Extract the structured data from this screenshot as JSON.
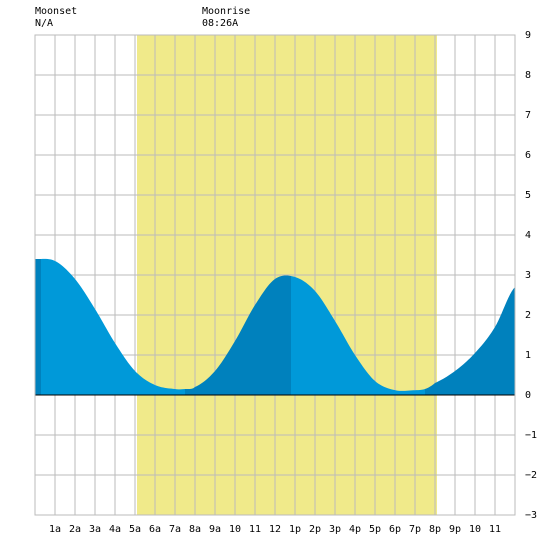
{
  "moonset": {
    "label": "Moonset",
    "value": "N/A"
  },
  "moonrise": {
    "label": "Moonrise",
    "value": "08:26A"
  },
  "colors": {
    "daylight": "#f0ea8a",
    "tide_light": "#0099d9",
    "tide_dark": "#0081bd",
    "grid": "#bbbbbb",
    "zero_line": "#000000"
  },
  "chart_data": {
    "type": "area",
    "title": "",
    "xlabel": "",
    "ylabel": "",
    "x_tick_labels": [
      "1a",
      "2a",
      "3a",
      "4a",
      "5a",
      "6a",
      "7a",
      "8a",
      "9a",
      "10",
      "11",
      "12",
      "1p",
      "2p",
      "3p",
      "4p",
      "5p",
      "6p",
      "7p",
      "8p",
      "9p",
      "10",
      "11"
    ],
    "x_range_hours": [
      0,
      24
    ],
    "ylim": [
      -3,
      9
    ],
    "y_ticks": [
      -3,
      -2,
      -1,
      0,
      1,
      2,
      3,
      4,
      5,
      6,
      7,
      8,
      9
    ],
    "grid": true,
    "daylight_hours": [
      5.1,
      20.1
    ],
    "series": [
      {
        "hours": [
          0,
          1,
          2,
          3,
          4,
          5,
          6,
          7,
          7.5,
          8,
          9,
          10,
          11,
          12,
          13,
          14,
          15,
          16,
          17,
          18,
          19,
          19.5,
          20,
          21,
          22,
          23,
          24
        ],
        "values": [
          3.4,
          3.35,
          2.9,
          2.15,
          1.3,
          0.6,
          0.25,
          0.15,
          0.15,
          0.2,
          0.6,
          1.35,
          2.25,
          2.9,
          2.95,
          2.6,
          1.85,
          1.0,
          0.35,
          0.12,
          0.12,
          0.15,
          0.3,
          0.6,
          1.05,
          1.7,
          2.7
        ]
      }
    ],
    "extrema": [
      {
        "type": "high",
        "hour": 0.3,
        "value": 3.5
      },
      {
        "type": "low",
        "hour": 7.5,
        "value": 0.15
      },
      {
        "type": "high",
        "hour": 12.8,
        "value": 3.0
      },
      {
        "type": "low",
        "hour": 19.5,
        "value": 0.12
      }
    ]
  }
}
